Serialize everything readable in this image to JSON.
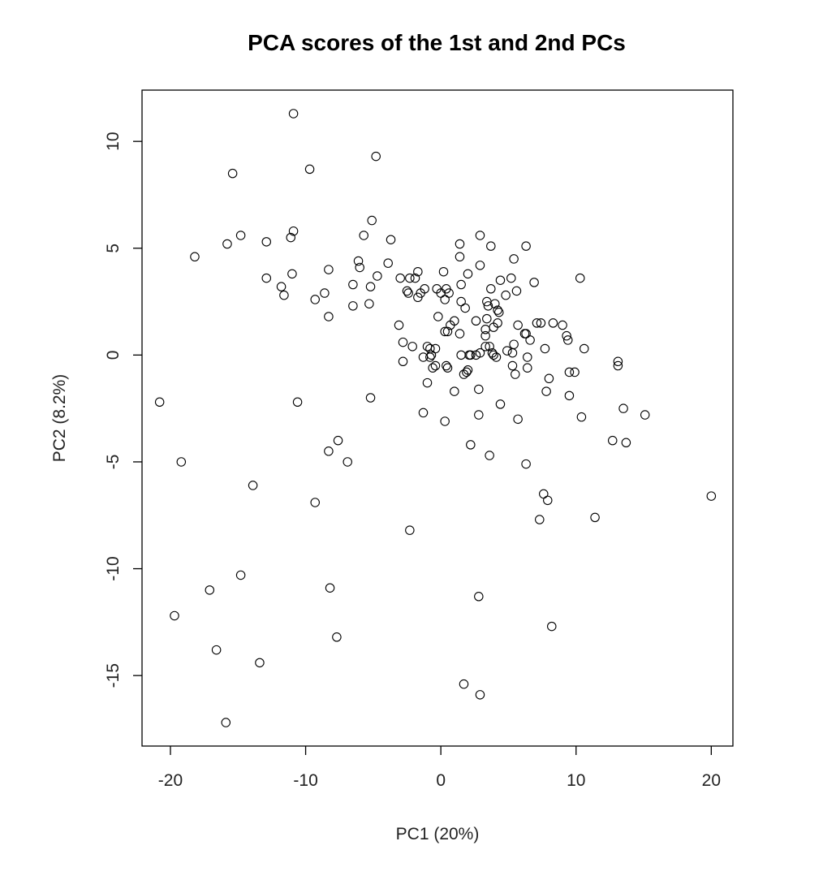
{
  "chart_data": {
    "type": "scatter",
    "title": "PCA scores of the 1st and 2nd PCs",
    "xlabel": "PC1 (20%)",
    "ylabel": "PC2 (8.2%)",
    "xlim": [
      -22.1,
      21.6
    ],
    "ylim": [
      -18.3,
      12.4
    ],
    "xticks": [
      -20,
      -10,
      0,
      10,
      20
    ],
    "yticks": [
      -15,
      -10,
      -5,
      0,
      5,
      10
    ],
    "grid": false,
    "marker": "open-circle",
    "color": "#000000",
    "points": [
      [
        -10.9,
        11.3
      ],
      [
        -4.8,
        9.3
      ],
      [
        -15.4,
        8.5
      ],
      [
        -9.7,
        8.7
      ],
      [
        -10.9,
        5.8
      ],
      [
        -14.8,
        5.6
      ],
      [
        -15.8,
        5.2
      ],
      [
        -12.9,
        5.3
      ],
      [
        -11.1,
        5.5
      ],
      [
        -5.1,
        6.3
      ],
      [
        -5.7,
        5.6
      ],
      [
        -3.7,
        5.4
      ],
      [
        2.9,
        5.6
      ],
      [
        1.4,
        5.2
      ],
      [
        3.7,
        5.1
      ],
      [
        6.3,
        5.1
      ],
      [
        -18.2,
        4.6
      ],
      [
        -6.1,
        4.4
      ],
      [
        -6.0,
        4.1
      ],
      [
        -3.9,
        4.3
      ],
      [
        -8.3,
        4.0
      ],
      [
        -11.0,
        3.8
      ],
      [
        -12.9,
        3.6
      ],
      [
        -11.8,
        3.2
      ],
      [
        -11.6,
        2.8
      ],
      [
        1.4,
        4.6
      ],
      [
        5.4,
        4.5
      ],
      [
        2.9,
        4.2
      ],
      [
        -4.7,
        3.7
      ],
      [
        -5.2,
        3.2
      ],
      [
        -6.5,
        3.3
      ],
      [
        -8.6,
        2.9
      ],
      [
        -9.3,
        2.6
      ],
      [
        -6.5,
        2.3
      ],
      [
        -5.3,
        2.4
      ],
      [
        -8.3,
        1.8
      ],
      [
        -3.0,
        3.6
      ],
      [
        -2.3,
        3.6
      ],
      [
        -1.7,
        3.9
      ],
      [
        -1.9,
        3.6
      ],
      [
        -2.5,
        3.0
      ],
      [
        -2.4,
        2.9
      ],
      [
        -1.5,
        2.9
      ],
      [
        -1.7,
        2.7
      ],
      [
        -1.2,
        3.1
      ],
      [
        -0.3,
        3.1
      ],
      [
        0.2,
        3.9
      ],
      [
        0.4,
        3.1
      ],
      [
        0.6,
        2.9
      ],
      [
        0.0,
        2.9
      ],
      [
        0.3,
        2.6
      ],
      [
        2.0,
        3.8
      ],
      [
        1.5,
        3.3
      ],
      [
        3.7,
        3.1
      ],
      [
        4.4,
        3.5
      ],
      [
        5.2,
        3.6
      ],
      [
        5.6,
        3.0
      ],
      [
        4.8,
        2.8
      ],
      [
        6.9,
        3.4
      ],
      [
        10.3,
        3.6
      ],
      [
        3.4,
        2.5
      ],
      [
        3.5,
        2.3
      ],
      [
        4.0,
        2.4
      ],
      [
        4.2,
        2.1
      ],
      [
        4.3,
        2.0
      ],
      [
        1.5,
        2.5
      ],
      [
        1.8,
        2.2
      ],
      [
        -0.2,
        1.8
      ],
      [
        1.0,
        1.6
      ],
      [
        0.7,
        1.4
      ],
      [
        3.4,
        1.7
      ],
      [
        2.6,
        1.6
      ],
      [
        -3.1,
        1.4
      ],
      [
        -2.8,
        0.6
      ],
      [
        -2.1,
        0.4
      ],
      [
        -1.0,
        0.4
      ],
      [
        -0.8,
        0.3
      ],
      [
        -0.4,
        0.3
      ],
      [
        0.3,
        1.1
      ],
      [
        0.5,
        1.1
      ],
      [
        1.4,
        1.0
      ],
      [
        3.3,
        1.2
      ],
      [
        3.3,
        0.9
      ],
      [
        3.9,
        1.3
      ],
      [
        4.2,
        1.5
      ],
      [
        5.7,
        1.4
      ],
      [
        6.2,
        1.0
      ],
      [
        6.3,
        1.0
      ],
      [
        7.1,
        1.5
      ],
      [
        7.4,
        1.5
      ],
      [
        8.3,
        1.5
      ],
      [
        9.0,
        1.4
      ],
      [
        9.3,
        0.9
      ],
      [
        9.4,
        0.7
      ],
      [
        6.6,
        0.7
      ],
      [
        7.7,
        0.3
      ],
      [
        10.6,
        0.3
      ],
      [
        5.4,
        0.5
      ],
      [
        4.9,
        0.2
      ],
      [
        3.6,
        0.4
      ],
      [
        3.3,
        0.4
      ],
      [
        3.8,
        0.1
      ],
      [
        3.9,
        0.0
      ],
      [
        4.1,
        -0.1
      ],
      [
        2.9,
        0.1
      ],
      [
        2.6,
        0.0
      ],
      [
        2.2,
        0.0
      ],
      [
        2.1,
        0.0
      ],
      [
        1.5,
        0.0
      ],
      [
        -1.3,
        -0.1
      ],
      [
        -0.8,
        -0.1
      ],
      [
        -0.7,
        0.0
      ],
      [
        -2.8,
        -0.3
      ],
      [
        -0.4,
        -0.5
      ],
      [
        -0.6,
        -0.6
      ],
      [
        0.4,
        -0.5
      ],
      [
        0.5,
        -0.6
      ],
      [
        1.7,
        -0.9
      ],
      [
        1.9,
        -0.8
      ],
      [
        2.0,
        -0.7
      ],
      [
        5.3,
        0.1
      ],
      [
        5.3,
        -0.5
      ],
      [
        5.5,
        -0.9
      ],
      [
        6.4,
        -0.1
      ],
      [
        6.4,
        -0.6
      ],
      [
        9.5,
        -0.8
      ],
      [
        9.9,
        -0.8
      ],
      [
        13.1,
        -0.3
      ],
      [
        13.1,
        -0.5
      ],
      [
        8.0,
        -1.1
      ],
      [
        7.8,
        -1.7
      ],
      [
        9.5,
        -1.9
      ],
      [
        -1.0,
        -1.3
      ],
      [
        1.0,
        -1.7
      ],
      [
        2.8,
        -1.6
      ],
      [
        4.4,
        -2.3
      ],
      [
        -5.2,
        -2.0
      ],
      [
        -10.6,
        -2.2
      ],
      [
        -20.8,
        -2.2
      ],
      [
        -1.3,
        -2.7
      ],
      [
        2.8,
        -2.8
      ],
      [
        0.3,
        -3.1
      ],
      [
        5.7,
        -3.0
      ],
      [
        10.4,
        -2.9
      ],
      [
        13.5,
        -2.5
      ],
      [
        15.1,
        -2.8
      ],
      [
        12.7,
        -4.0
      ],
      [
        13.7,
        -4.1
      ],
      [
        2.2,
        -4.2
      ],
      [
        3.6,
        -4.7
      ],
      [
        6.3,
        -5.1
      ],
      [
        -7.6,
        -4.0
      ],
      [
        -8.3,
        -4.5
      ],
      [
        -6.9,
        -5.0
      ],
      [
        -19.2,
        -5.0
      ],
      [
        -13.9,
        -6.1
      ],
      [
        -9.3,
        -6.9
      ],
      [
        7.6,
        -6.5
      ],
      [
        7.9,
        -6.8
      ],
      [
        7.3,
        -7.7
      ],
      [
        11.4,
        -7.6
      ],
      [
        20.0,
        -6.6
      ],
      [
        -2.3,
        -8.2
      ],
      [
        -14.8,
        -10.3
      ],
      [
        -17.1,
        -11.0
      ],
      [
        -8.2,
        -10.9
      ],
      [
        -19.7,
        -12.2
      ],
      [
        2.8,
        -11.3
      ],
      [
        8.2,
        -12.7
      ],
      [
        -16.6,
        -13.8
      ],
      [
        -7.7,
        -13.2
      ],
      [
        -13.4,
        -14.4
      ],
      [
        1.7,
        -15.4
      ],
      [
        2.9,
        -15.9
      ],
      [
        -15.9,
        -17.2
      ]
    ]
  }
}
